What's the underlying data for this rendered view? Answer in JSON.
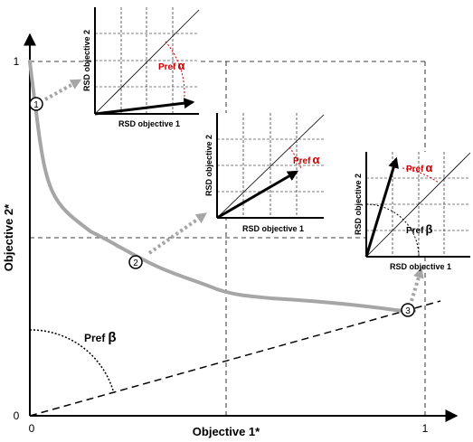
{
  "main_axes": {
    "x_label": "Objective 1*",
    "y_label": "Objective 2*",
    "x_tick_0": "0",
    "x_tick_1": "1",
    "y_tick_0": "0",
    "y_tick_1": "1"
  },
  "pref_beta_main": {
    "text": "Pref",
    "symbol": "β"
  },
  "markers": [
    "1",
    "2",
    "3"
  ],
  "insets": [
    {
      "x_label": "RSD objective 1",
      "y_label": "RSD objective 2",
      "pref_text": "Pref",
      "alpha_symbol": "α"
    },
    {
      "x_label": "RSD objective 1",
      "y_label": "RSD objective 2",
      "pref_text": "Pref",
      "alpha_symbol": "α"
    },
    {
      "x_label": "RSD objective 1",
      "y_label": "RSD objective 2",
      "pref_text": "Pref",
      "alpha_symbol": "α",
      "beta_text": "Pref",
      "beta_symbol": "β"
    }
  ],
  "colors": {
    "frontier": "#a6a6a6",
    "arrow_dotted": "#a6a6a6",
    "alpha": "#cc0000",
    "axes": "#000000"
  }
}
